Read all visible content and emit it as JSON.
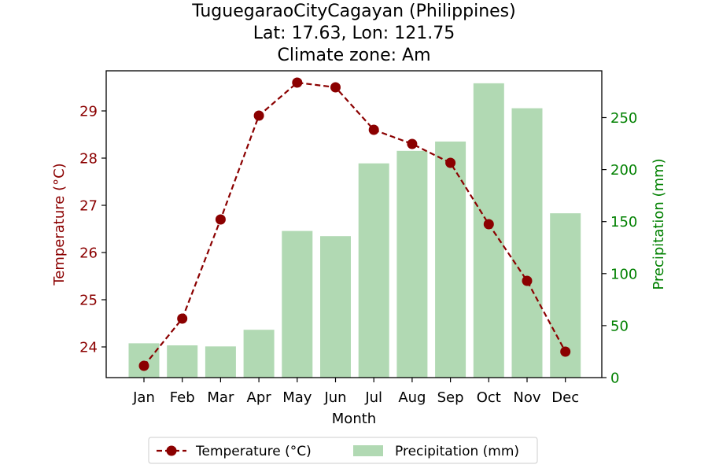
{
  "chart_data": {
    "type": "bar+line",
    "title_lines": [
      "TuguegaraoCityCagayan (Philippines)",
      "Lat: 17.63, Lon: 121.75",
      "Climate zone: Am"
    ],
    "xlabel": "Month",
    "categories": [
      "Jan",
      "Feb",
      "Mar",
      "Apr",
      "May",
      "Jun",
      "Jul",
      "Aug",
      "Sep",
      "Oct",
      "Nov",
      "Dec"
    ],
    "temperature": {
      "name": "Temperature (°C)",
      "axis_label": "Temperature (°C)",
      "color": "#8b0000",
      "values": [
        23.6,
        24.6,
        26.7,
        28.9,
        29.6,
        29.5,
        28.6,
        28.3,
        27.9,
        26.6,
        25.4,
        23.9
      ],
      "ylim": [
        23.35,
        29.85
      ],
      "ticks": [
        24,
        25,
        26,
        27,
        28,
        29
      ]
    },
    "precipitation": {
      "name": "Precipitation (mm)",
      "axis_label": "Precipitation (mm)",
      "color": "#b1d9b3",
      "axis_color": "#008000",
      "values": [
        33,
        31,
        30,
        46,
        141,
        136,
        206,
        218,
        227,
        283,
        259,
        158
      ],
      "ylim": [
        0,
        295
      ],
      "ticks": [
        0,
        50,
        100,
        150,
        200,
        250
      ]
    },
    "legend": {
      "placement": "bottom-center",
      "entries": [
        "Temperature (°C)",
        "Precipitation (mm)"
      ]
    },
    "grid": false
  }
}
